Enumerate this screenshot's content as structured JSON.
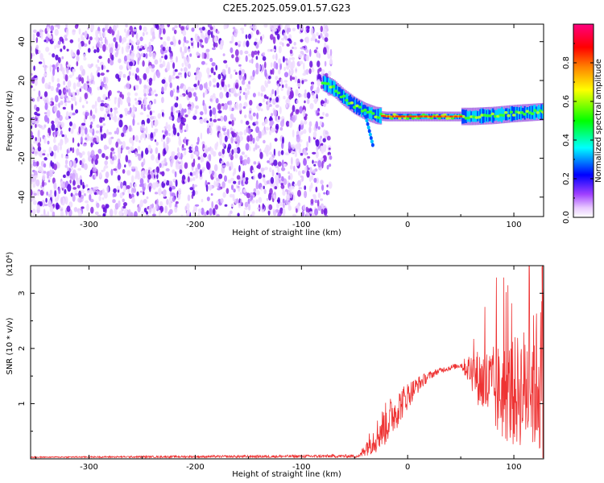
{
  "title": "C2E5.2025.059.01.57.G23",
  "chart_data": [
    {
      "type": "heatmap",
      "title": "C2E5.2025.059.01.57.G23",
      "xlabel": "Height of straight line (km)",
      "ylabel": "Frequency (Hz)",
      "xlim": [
        -355,
        128
      ],
      "ylim": [
        -50,
        49
      ],
      "xticks": [
        "-300",
        "-200",
        "-100",
        "0",
        "100"
      ],
      "xtick_values": [
        -300,
        -200,
        -100,
        0,
        100
      ],
      "yticks": [
        "40",
        "20",
        "0",
        "-20",
        "-40"
      ],
      "ytick_values": [
        40,
        20,
        0,
        -20,
        -40
      ],
      "noise_region": {
        "x_from": -355,
        "x_to": -72
      },
      "signal_track": {
        "x": [
          -80,
          -70,
          -60,
          -50,
          -40,
          -30,
          -20,
          -10,
          0,
          20,
          40,
          50,
          60,
          80,
          100,
          128
        ],
        "y": [
          19,
          16,
          11,
          7,
          4,
          2,
          1.5,
          1.5,
          1.5,
          1.5,
          1.5,
          1.5,
          1.5,
          2,
          3,
          4
        ]
      },
      "colorbar": {
        "label": "Normalized spectral amplitude",
        "range": [
          0,
          1
        ],
        "ticks": [
          "0.0",
          "0.2",
          "0.4",
          "0.6",
          "0.8"
        ],
        "tick_values": [
          0,
          0.2,
          0.4,
          0.6,
          0.8
        ],
        "colors": [
          "#ffffff",
          "#e8c8ff",
          "#8a2be2",
          "#0000ff",
          "#00ffff",
          "#00ff00",
          "#ffff00",
          "#ff8000",
          "#ff0000",
          "#ff00aa"
        ]
      }
    },
    {
      "type": "line",
      "xlabel": "Height of straight line (km)",
      "ylabel": "SNR (10 * v/v)",
      "y_multiplier": "(x10⁴)",
      "xlim": [
        -355,
        128
      ],
      "ylim": [
        0,
        3.5
      ],
      "xticks": [
        "-300",
        "-200",
        "-100",
        "0",
        "100"
      ],
      "xtick_values": [
        -300,
        -200,
        -100,
        0,
        100
      ],
      "yticks": [
        "1",
        "2",
        "3"
      ],
      "ytick_values": [
        1,
        2,
        3
      ],
      "color": "#ee3333",
      "envelope": {
        "x": [
          -355,
          -45,
          -40,
          -30,
          -20,
          -10,
          0,
          10,
          20,
          30,
          40,
          50,
          60,
          70,
          80,
          90,
          100,
          110,
          120,
          128
        ],
        "mean": [
          0.03,
          0.05,
          0.2,
          0.4,
          0.65,
          0.9,
          1.15,
          1.35,
          1.5,
          1.6,
          1.65,
          1.7,
          1.6,
          1.4,
          1.25,
          1.2,
          1.2,
          1.3,
          1.4,
          1.5
        ],
        "spread": [
          0.01,
          0.03,
          0.15,
          0.3,
          0.4,
          0.35,
          0.25,
          0.15,
          0.08,
          0.05,
          0.05,
          0.05,
          0.35,
          0.6,
          0.8,
          0.9,
          1.0,
          1.1,
          1.3,
          1.6
        ]
      }
    }
  ]
}
